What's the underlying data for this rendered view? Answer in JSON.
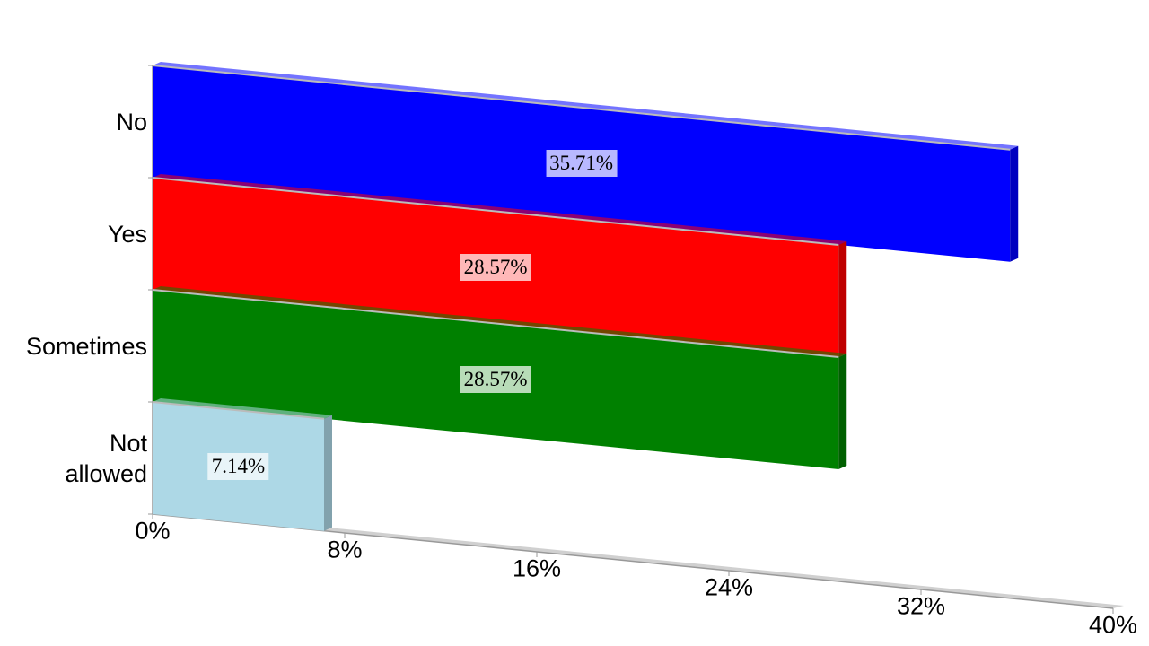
{
  "chart_data": {
    "type": "bar",
    "orientation": "horizontal",
    "categories": [
      "No",
      "Yes",
      "Sometimes",
      "Not allowed"
    ],
    "values": [
      35.71,
      28.57,
      28.57,
      7.14
    ],
    "value_labels": [
      "35.71%",
      "28.57%",
      "28.57%",
      "7.14%"
    ],
    "colors": [
      "#0000ff",
      "#ff0000",
      "#008000",
      "#add8e6"
    ],
    "xlim": [
      0,
      40
    ],
    "xticks": [
      {
        "value": 0,
        "label": "0%"
      },
      {
        "value": 8,
        "label": "8%"
      },
      {
        "value": 16,
        "label": "16%"
      },
      {
        "value": 24,
        "label": "24%"
      },
      {
        "value": 32,
        "label": "32%"
      },
      {
        "value": 40,
        "label": "40%"
      }
    ]
  }
}
